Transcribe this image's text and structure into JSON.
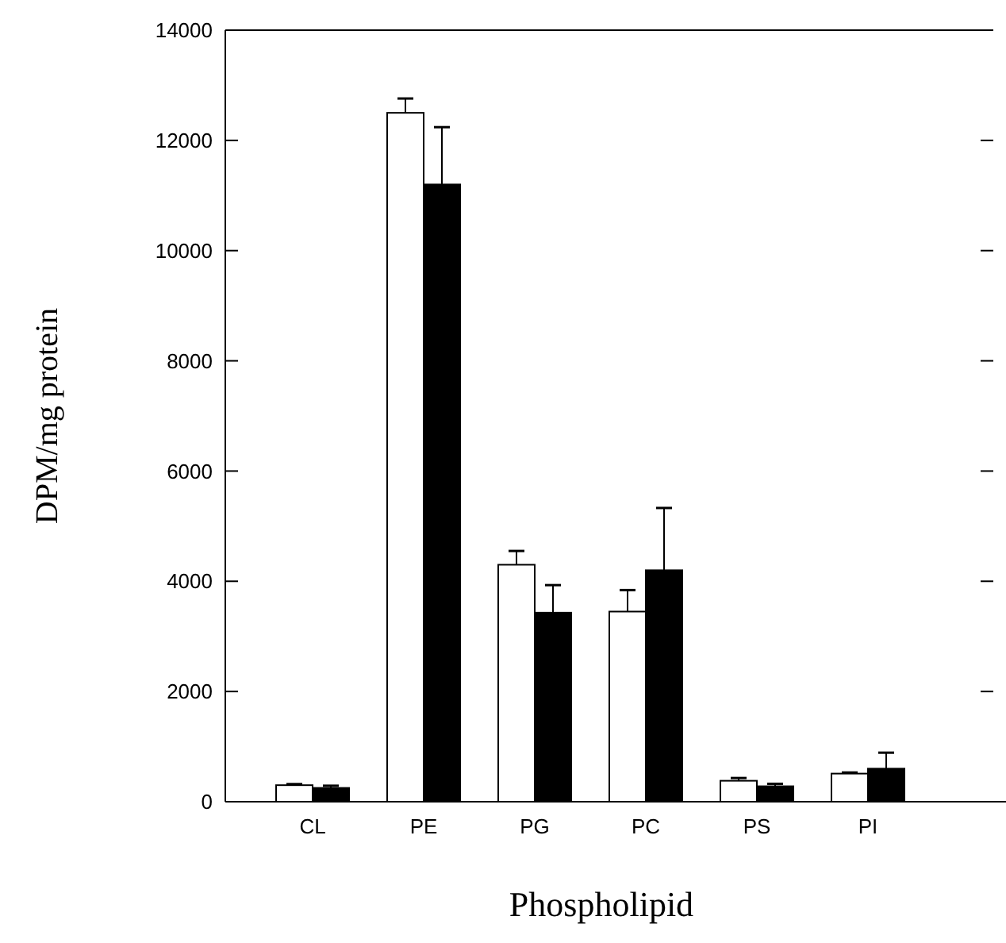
{
  "chart_data": {
    "type": "bar",
    "xlabel": "Phospholipid",
    "ylabel": "DPM/mg protein",
    "categories": [
      "CL",
      "PE",
      "PG",
      "PC",
      "PS",
      "PI"
    ],
    "series": [
      {
        "color": "#ffffff",
        "values": [
          300,
          12500,
          4300,
          3450,
          380,
          510
        ],
        "errors": [
          [
            300,
            320
          ],
          [
            12500,
            12760
          ],
          [
            4300,
            4550
          ],
          [
            3450,
            3840
          ],
          [
            380,
            430
          ],
          [
            510,
            530
          ]
        ]
      },
      {
        "color": "#000000",
        "values": [
          250,
          11200,
          3430,
          4200,
          280,
          600
        ],
        "errors": [
          [
            250,
            290
          ],
          [
            11200,
            12240
          ],
          [
            3430,
            3930
          ],
          [
            4200,
            5330
          ],
          [
            280,
            325
          ],
          [
            600,
            890
          ]
        ]
      }
    ],
    "ylim": [
      0,
      14000
    ],
    "yticks": [
      0,
      2000,
      4000,
      6000,
      8000,
      10000,
      12000,
      14000
    ],
    "grid": false
  }
}
